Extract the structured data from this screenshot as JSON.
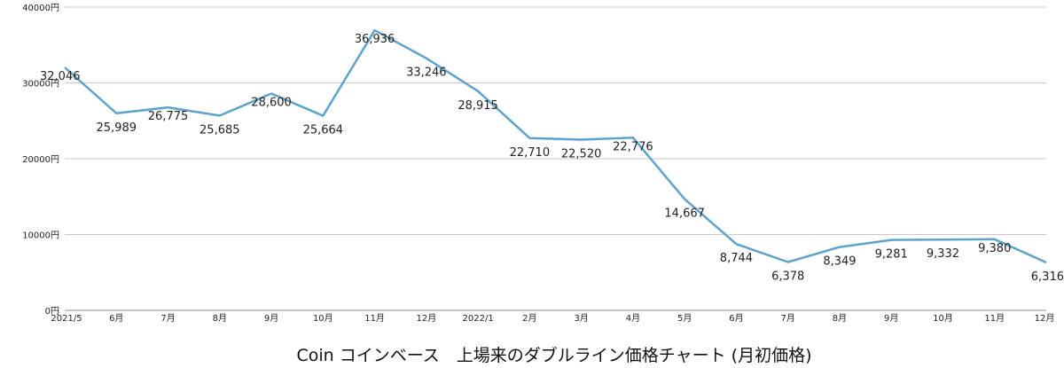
{
  "chart_data": {
    "type": "line",
    "title": "Coin コインベース　上場来のダブルライン価格チャート (月初価格)",
    "categories": [
      "2021/5",
      "6月",
      "7月",
      "8月",
      "9月",
      "10月",
      "11月",
      "12月",
      "2022/1",
      "2月",
      "3月",
      "4月",
      "5月",
      "6月",
      "7月",
      "8月",
      "9月",
      "10月",
      "11月",
      "12月"
    ],
    "series": [
      {
        "values": [
          32046,
          25989,
          26775,
          25685,
          28600,
          25664,
          36936,
          33246,
          28915,
          22710,
          22520,
          22776,
          14667,
          8744,
          6378,
          8349,
          9281,
          9332,
          9380,
          6316
        ],
        "labels": [
          "32,046",
          "25,989",
          "26,775",
          "25,685",
          "28,600",
          "25,664",
          "36,936",
          "33,246",
          "28,915",
          "22,710",
          "22,520",
          "22,776",
          "14,667",
          "8,744",
          "6,378",
          "8,349",
          "9,281",
          "9,332",
          "9,380",
          "6,316"
        ],
        "color": "#5ba3cf"
      }
    ],
    "ylim": [
      0,
      40000
    ],
    "yticks": [
      0,
      10000,
      20000,
      30000,
      40000
    ],
    "ytick_labels": [
      "0円",
      "10000円",
      "20000円",
      "30000円",
      "40000円"
    ],
    "grid": true,
    "legend": "none",
    "xlabel": "",
    "ylabel": ""
  }
}
